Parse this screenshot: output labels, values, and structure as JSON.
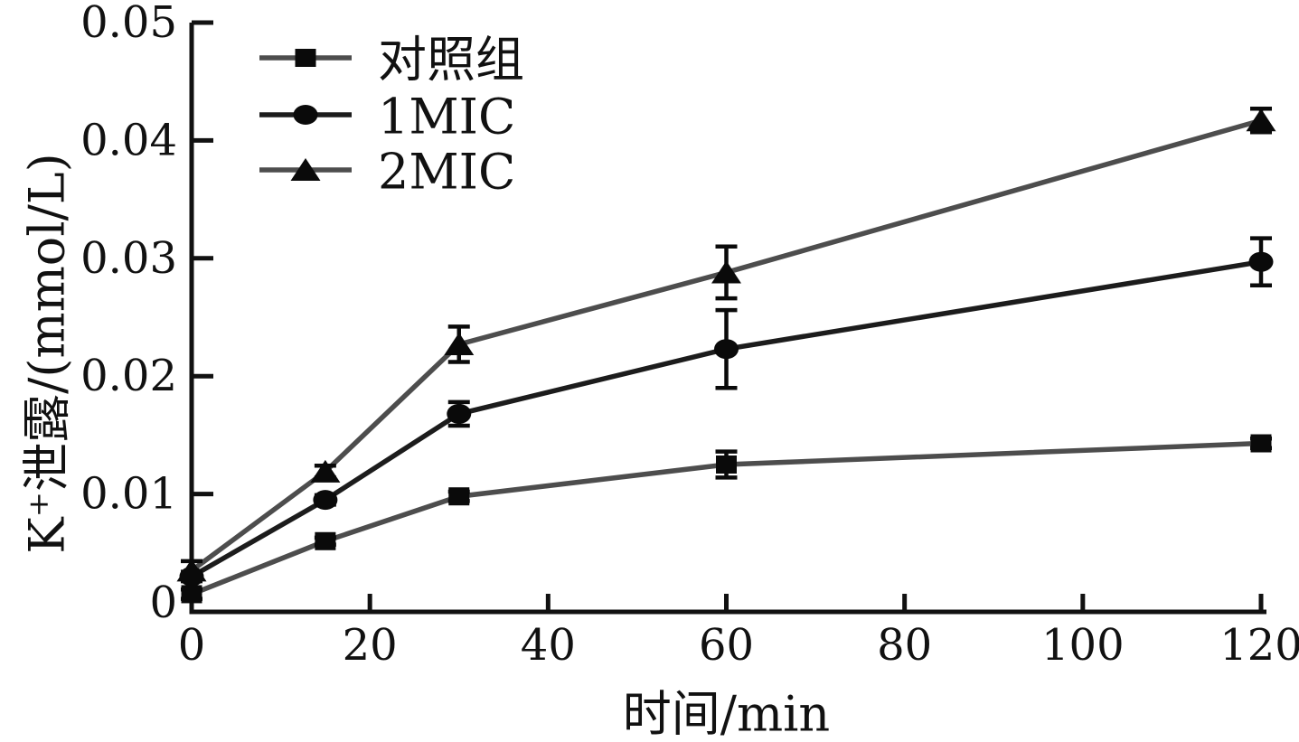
{
  "chart_data": {
    "type": "line",
    "title": "",
    "xlabel": "时间/min",
    "ylabel": "K⁺泄露/(mmol/L)",
    "xlim": [
      0,
      120
    ],
    "ylim": [
      0,
      0.05
    ],
    "x_ticks": [
      0,
      20,
      40,
      60,
      80,
      100,
      120
    ],
    "x_tick_labels": [
      "0",
      "20",
      "40",
      "60",
      "80",
      "100",
      "120"
    ],
    "y_ticks": [
      0,
      0.01,
      0.02,
      0.03,
      0.04,
      0.05
    ],
    "y_tick_labels": [
      "0",
      "0.01",
      "0.02",
      "0.03",
      "0.04",
      "0.05"
    ],
    "grid": false,
    "legend_position": "upper-left-inside",
    "x": [
      0,
      15,
      30,
      60,
      120
    ],
    "series": [
      {
        "key": "control",
        "name": "对照组",
        "marker": "square",
        "line_color": "#4d4d4d",
        "marker_color": "#0a0a0a",
        "values": [
          0.0015,
          0.006,
          0.0098,
          0.0125,
          0.0143
        ],
        "errors": [
          0.0004,
          0.0003,
          0.0004,
          0.0011,
          0.0004
        ]
      },
      {
        "key": "mic1",
        "name": "1MIC",
        "marker": "circle",
        "line_color": "#1c1c1c",
        "marker_color": "#0a0a0a",
        "values": [
          0.003,
          0.0095,
          0.0168,
          0.0223,
          0.0297
        ],
        "errors": [
          0.0004,
          0.0004,
          0.001,
          0.0033,
          0.002
        ]
      },
      {
        "key": "mic2",
        "name": "2MIC",
        "marker": "triangle",
        "line_color": "#4d4d4d",
        "marker_color": "#0a0a0a",
        "values": [
          0.0035,
          0.0119,
          0.0227,
          0.0288,
          0.0417
        ],
        "errors": [
          0.0008,
          0.0005,
          0.0015,
          0.0022,
          0.001
        ]
      }
    ],
    "colors": {
      "axis": "#111111",
      "text": "#111111",
      "error_bar": "#0a0a0a",
      "background": "#ffffff"
    }
  }
}
